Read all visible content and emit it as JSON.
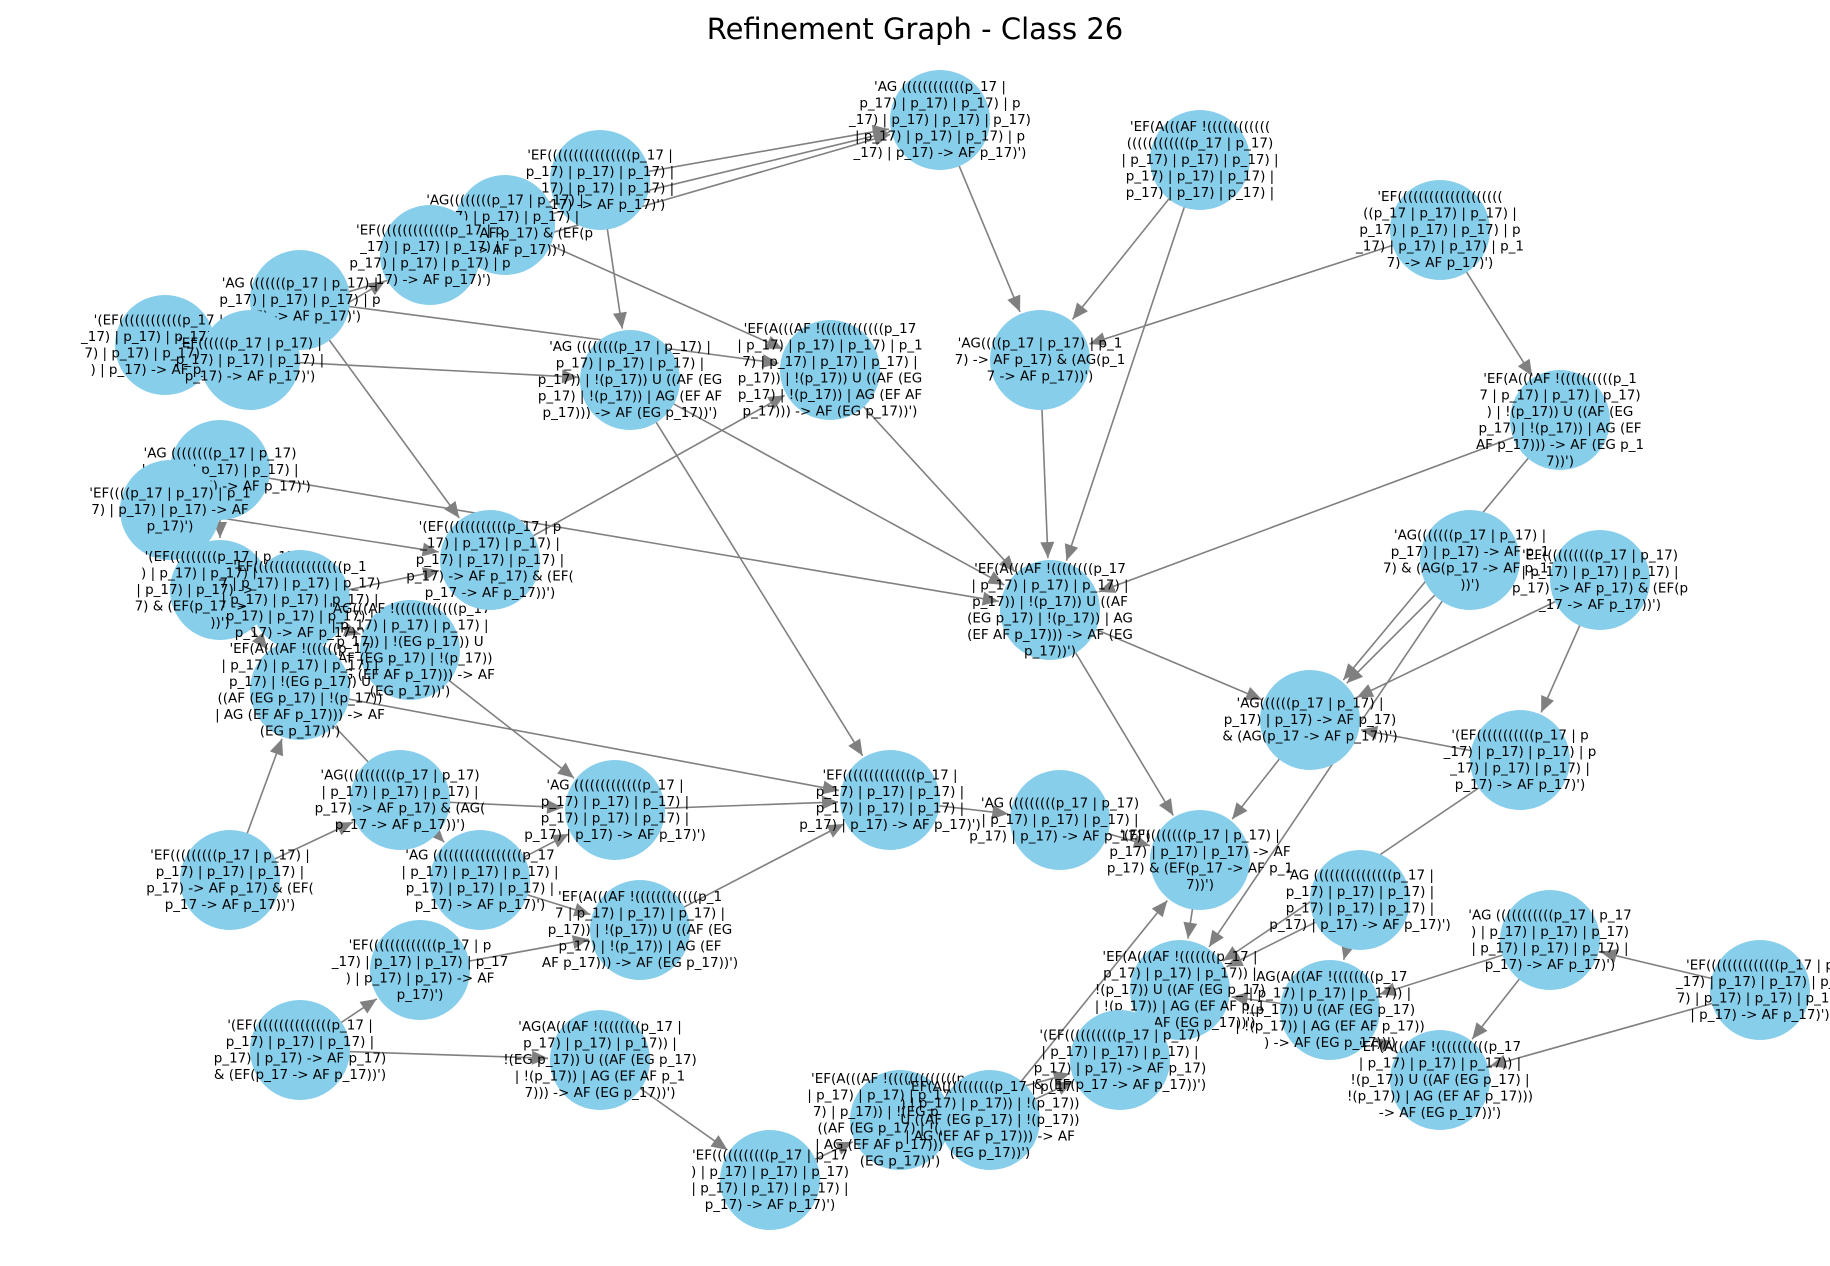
{
  "title": "Refinement Graph - Class 26",
  "colors": {
    "node": "#87ceeb",
    "edge": "#808080",
    "text": "#000000",
    "background": "#ffffff"
  },
  "nodes": [
    {
      "id": "n1",
      "lines": [
        "'AG ((((((((((((p_17 |",
        "p_17) | p_17) | p_17) | p",
        "_17) | p_17) | p_17) | p_17)",
        "| p_17) | p_17) | p_17) | p",
        "_17) | p_17) -> AF p_17)')"
      ]
    },
    {
      "id": "n2",
      "lines": [
        "'EF(A(((AF !((((((((((((",
        "((((((((((((p_17 | p_17)",
        "| p_17) | p_17) | p_17) |",
        "p_17) | p_17) | p_17) |",
        "p_17) | p_17) | p_17) |"
      ]
    },
    {
      "id": "n3",
      "lines": [
        "'EF((((((((((((((((((((",
        "((p_17 | p_17) | p_17) |",
        "p_17) | p_17) | p_17) | p",
        "_17) | p_17) | p_17) | p_1",
        "7) -> AF p_17)')"
      ]
    },
    {
      "id": "n4",
      "lines": [
        "'EF((((((((((((((((p_17 |",
        "p_17) | p_17) | p_17) |",
        "p_17) | p_17) | p_17) |",
        "p_17) -> AF p_17)')"
      ]
    },
    {
      "id": "n5",
      "lines": [
        "'AG((((((((p_17 | p_17) |",
        "p_17) | p_17) | p_17) |",
        "p_17) -> AF p_17) & (EF(p",
        "_17 -> AF p_17))')"
      ]
    },
    {
      "id": "n6",
      "lines": [
        "'EF((((((((((((((p_17 | p",
        "_17) | p_17) | p_17) |",
        "p_17) | p_17) | p_17) | p",
        "_17) -> AF p_17)')"
      ]
    },
    {
      "id": "n7",
      "lines": [
        "'AG (((((((p_17 | p_17) |",
        "p_17) | p_17) | p_17) | p",
        "_17) -> AF p_17)')"
      ]
    },
    {
      "id": "n8",
      "lines": [
        "'(EF((((((((((((p_17 | p",
        "_17) | p_17) | p_17) | p_1",
        "7) | p_17) | p_17) | p_17",
        ") | p_17) -> AF p_17)')"
      ]
    },
    {
      "id": "n9",
      "lines": [
        "'EF((((((p_17 | p_17) |",
        "p_17) | p_17) | p_17) |",
        "p_17) -> AF p_17)')"
      ]
    },
    {
      "id": "n10",
      "lines": [
        "'AG ((((((((p_17 | p_17)",
        "| p_17) | p_17) | p_17) |",
        "p_17) | p_17) -> AF p_17)')"
      ]
    },
    {
      "id": "n11",
      "lines": [
        "'EF((((p_17 | p_17) | p_1",
        "7) | p_17) | p_17) -> AF",
        "p_17)')"
      ]
    },
    {
      "id": "n12",
      "lines": [
        "'EF(A(((AF !((((((((p_17",
        "| p_17) | p_17) | p_17) |",
        "p_17)) | !(p_17)) U ((AF",
        "(EG p_17) | !(p_17)) | AG",
        "(EF AF p_17))) -> AF (EG",
        "p_17))')"
      ]
    },
    {
      "id": "n13",
      "lines": [
        "'AG ((((((((p_17 | p_17) |",
        "p_17) | p_17) | p_17) |",
        "p_17)) | !(p_17)) U ((AF (EG",
        "p_17) | !(p_17)) | AG (EF AF",
        "p_17))) -> AF (EG p_17))')"
      ]
    },
    {
      "id": "n14",
      "lines": [
        "'EF(A(((AF !((((((((((((p_17",
        "| p_17) | p_17) | p_17) | p_1",
        "7) | p_17) | p_17) | p_17) |",
        "p_17)) | !(p_17)) U ((AF (EG",
        "p_17) | !(p_17)) | AG (EF AF",
        "p_17))) -> AF (EG p_17))')"
      ]
    },
    {
      "id": "n15",
      "lines": [
        "'AG((((p_17 | p_17) | p_1",
        "7) -> AF p_17) & (AG(p_1",
        "7 -> AF p_17))')"
      ]
    },
    {
      "id": "n16",
      "lines": [
        "'(EF(((((((((p_17 | p_17",
        ") | p_17) | p_17) | p_17)",
        "| p_17) | p_17) -> AF p_1",
        "7) & (EF(p_17 -> AF p_17",
        "))')"
      ]
    },
    {
      "id": "n17",
      "lines": [
        "'EF(((((((((((((((((p_1",
        "7 | p_17) | p_17) | p_17)",
        "| p_17) | p_17) | p_17) |",
        "p_17) | p_17) | p_17) |",
        "p_17) -> AF p_17)')"
      ]
    },
    {
      "id": "n18",
      "lines": [
        "'AG(((AF !((((((((((((p_17",
        "| p_17) | p_17) | p_17) |",
        "p_17)) | !(EG p_17)) U",
        "((AF (EG p_17) | !(p_17))",
        "| AG (EF AF p_17))) -> AF",
        "(EG p_17))')"
      ]
    },
    {
      "id": "n19",
      "lines": [
        "'EF(A(((AF !((((((p_17",
        "| p_17) | p_17) | p_17) |",
        "p_17) | !(EG p_17)) U",
        "((AF (EG p_17) | !(p_17))",
        "| AG (EF AF p_17))) -> AF",
        "(EG p_17))')"
      ]
    },
    {
      "id": "n20",
      "lines": [
        "'(EF((((((((((((p_17 | p",
        "_17) | p_17) | p_17) |",
        "p_17) | p_17) | p_17) |",
        "p_17) -> AF p_17) & (EF(",
        "p_17 -> AF p_17))')"
      ]
    },
    {
      "id": "n21",
      "lines": [
        "'AG (((((((((((((p_17 |",
        "p_17) | p_17) | p_17) |",
        "p_17) | p_17) | p_17) |",
        "p_17) | p_17) -> AF p_17)')"
      ]
    },
    {
      "id": "n22",
      "lines": [
        "'EF((((((((((((((p_17 |",
        "p_17) | p_17) | p_17) |",
        "p_17) | p_17) | p_17) |",
        "p_17) | p_17) -> AF p_17)')"
      ]
    },
    {
      "id": "n23",
      "lines": [
        "'AG((((((p_17 | p_17) |",
        "p_17) | p_17) -> AF p_17)",
        "& (AG(p_17 -> AF p_17))')"
      ]
    },
    {
      "id": "n24",
      "lines": [
        "'EF(A(((AF !((((((((((p_1",
        "7 | p_17) | p_17) | p_17)",
        ") | !(p_17)) U ((AF (EG",
        "p_17) | !(p_17)) | AG (EF",
        "AF p_17))) -> AF (EG p_1",
        "7))')"
      ]
    },
    {
      "id": "n25",
      "lines": [
        "'AG(((((((p_17 | p_17) |",
        "p_17) | p_17) -> AF p_1",
        "7) & (AG(p_17 -> AF p_17",
        "))')"
      ]
    },
    {
      "id": "n26",
      "lines": [
        "'EF((((((((((p_17 | p_17)",
        "| p_17) | p_17) | p_17) |",
        "p_17) -> AF p_17) & (EF(p",
        "_17 -> AF p_17))')"
      ]
    },
    {
      "id": "n27",
      "lines": [
        "'(EF(((((((((((p_17 | p",
        "_17) | p_17) | p_17) | p",
        "_17) | p_17) | p_17) |",
        "p_17) -> AF p_17)')"
      ]
    },
    {
      "id": "n28",
      "lines": [
        "'AG (((((((((((((((p_17 |",
        "p_17) | p_17) | p_17) |",
        "p_17) | p_17) | p_17) |",
        "p_17) | p_17) -> AF p_17)')"
      ]
    },
    {
      "id": "n29",
      "lines": [
        "'EF(A(((AF !(((((((p_17 |",
        "p_17) | p_17) | p_17)) |",
        "!(p_17)) U ((AF (EG p_17)",
        "| !(p_17)) | AG (EF AF p_1",
        "7))) -> AF (EG p_17))')"
      ]
    },
    {
      "id": "n30",
      "lines": [
        "'AG(A(((AF !((((((((p_17",
        "| p_17) | p_17) | p_17)) |",
        "!(p_17)) U ((AF (EG p_17)",
        "| !(p_17)) | AG (EF AF p_17))",
        ") -> AF (EG p_17))')"
      ]
    },
    {
      "id": "n31",
      "lines": [
        "'AG (((((((((((p_17 | p_17",
        ") | p_17) | p_17) | p_17)",
        "| p_17) | p_17) | p_17) |",
        "p_17) -> AF p_17)')"
      ]
    },
    {
      "id": "n32",
      "lines": [
        "'EF((((((((((((((p_17 | p",
        "_17) | p_17) | p_17) | p_1",
        "7) | p_17) | p_17) | p_17)",
        "| p_17) -> AF p_17)')"
      ]
    },
    {
      "id": "n33",
      "lines": [
        "'(EF((((((((((p_17 | p_17)",
        "| p_17) | p_17) | p_17) |",
        "p_17) | p_17) -> AF p_17)",
        "& (EF(p_17 -> AF p_17))')"
      ]
    },
    {
      "id": "n34",
      "lines": [
        "'EF(A(((AF !((((((((((p_17",
        "| p_17) | p_17) | p_17)) |",
        "!(p_17)) U ((AF (EG p_17) |",
        "!(p_17)) | AG (EF AF p_17)))",
        "-> AF (EG p_17))')"
      ]
    },
    {
      "id": "n35",
      "lines": [
        "'AG (((((((((p_17 | p_17)",
        "| p_17) | p_17) | p_17) |",
        "p_17) | p_17) -> AF p_17)')"
      ]
    },
    {
      "id": "n36",
      "lines": [
        "'EF(A(((AF !(((((((((((((p_17",
        "| p_17) | p_17) | p_17) | p_1",
        "7) | p_17)) | !(EG p_17)) U",
        "((AF (EG p_17) | !(p_17))",
        "| AG (EF AF p_17))) -> AF",
        "(EG p_17))')"
      ]
    },
    {
      "id": "n37",
      "lines": [
        "'EF(((((((((((p_17 | p_17",
        ") | p_17) | p_17) | p_17)",
        "| p_17) | p_17) | p_17) |",
        "p_17) -> AF p_17)')"
      ]
    },
    {
      "id": "n38",
      "lines": [
        "'(EF(((((((((((((((p_17 |",
        "p_17) | p_17) | p_17) |",
        "p_17) | p_17) -> AF p_17)",
        "& (EF(p_17 -> AF p_17))')"
      ]
    },
    {
      "id": "n39",
      "lines": [
        "'EF(((((((((((((p_17 | p",
        "_17) | p_17) | p_17) | p_17",
        ") | p_17) | p_17) -> AF",
        "p_17)')"
      ]
    },
    {
      "id": "n40",
      "lines": [
        "'AG(A(((AF !((((((((p_17 |",
        "p_17) | p_17) | p_17)) |",
        "!(EG p_17)) U ((AF (EG p_17)",
        "| !(p_17)) | AG (EF AF p_1",
        "7))) -> AF (EG p_17))')"
      ]
    },
    {
      "id": "n41",
      "lines": [
        "'EF(((((((((p_17 | p_17) |",
        "p_17) | p_17) | p_17) |",
        "p_17) -> AF p_17) & (EF(",
        "p_17 -> AF p_17))')"
      ]
    },
    {
      "id": "n42",
      "lines": [
        "'AG((((((((((p_17 | p_17)",
        "| p_17) | p_17) | p_17) |",
        "p_17) -> AF p_17) & (AG(",
        "p_17 -> AF p_17))')"
      ]
    },
    {
      "id": "n43",
      "lines": [
        "'EF(A(((AF !((((((((((((p_1",
        "7 | p_17) | p_17) | p_17) |",
        "p_17)) | !(p_17)) U ((AF (EG",
        "p_17) | !(p_17)) | AG (EF",
        "AF p_17))) -> AF (EG p_17))')"
      ]
    },
    {
      "id": "n44",
      "lines": [
        "'EF(A((((((((((p_17 | p_17",
        ") | p_17) | p_17)) | !(p_17))",
        "U ((AF (EG p_17) | !(p_17))",
        "| AG (EF AF p_17))) -> AF",
        "(EG p_17))')"
      ]
    },
    {
      "id": "n45",
      "lines": [
        "'AG (((((((((((((((((p_17",
        "| p_17) | p_17) | p_17) |",
        "p_17) | p_17) | p_17) |",
        "p_17) -> AF p_17)')"
      ]
    },
    {
      "id": "n46",
      "lines": [
        "'(EF((((((((p_17 | p_17) |",
        "p_17) | p_17) | p_17) -> AF",
        "p_17) & (EF(p_17 -> AF p_1",
        "7))')"
      ]
    }
  ]
}
